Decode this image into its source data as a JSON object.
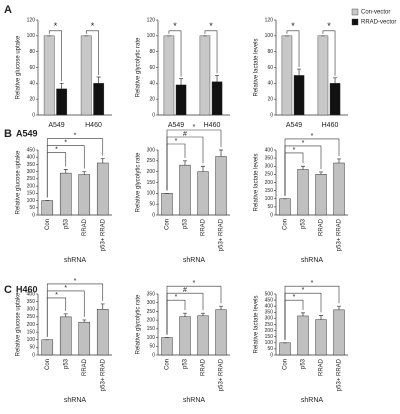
{
  "panels": [
    {
      "label": "A"
    },
    {
      "label": "B",
      "title": "A549"
    },
    {
      "label": "C",
      "title": "H460"
    }
  ],
  "chart_data": [
    {
      "type": "grouped_bar",
      "ylabel": "Relative glucose uptake",
      "categories": [
        "A549",
        "H460"
      ],
      "series": [
        {
          "name": "Con-vector",
          "color": "#c8c8c8",
          "values": [
            100,
            100
          ],
          "errors": [
            0,
            0
          ]
        },
        {
          "name": "RRAD-vector",
          "color": "#111111",
          "values": [
            33,
            40
          ],
          "errors": [
            7,
            8
          ]
        }
      ],
      "significance": [
        "*",
        "*"
      ],
      "ylim": [
        0,
        120
      ],
      "yticks": [
        0,
        20,
        40,
        60,
        80,
        100,
        120
      ],
      "legend": true
    },
    {
      "type": "grouped_bar",
      "ylabel": "Relative glycolytic rate",
      "categories": [
        "A549",
        "H460"
      ],
      "series": [
        {
          "name": "Con-vector",
          "color": "#c8c8c8",
          "values": [
            100,
            100
          ],
          "errors": [
            0,
            0
          ]
        },
        {
          "name": "RRAD-vector",
          "color": "#111111",
          "values": [
            38,
            42
          ],
          "errors": [
            8,
            8
          ]
        }
      ],
      "significance": [
        "*",
        "*"
      ],
      "ylim": [
        0,
        120
      ],
      "yticks": [
        0,
        20,
        40,
        60,
        80,
        100,
        120
      ],
      "legend": false
    },
    {
      "type": "grouped_bar",
      "ylabel": "Relative lactate levels",
      "categories": [
        "A549",
        "H460"
      ],
      "series": [
        {
          "name": "Con-vector",
          "color": "#c8c8c8",
          "values": [
            100,
            100
          ],
          "errors": [
            0,
            0
          ]
        },
        {
          "name": "RRAD-vector",
          "color": "#111111",
          "values": [
            50,
            40
          ],
          "errors": [
            8,
            7
          ]
        }
      ],
      "significance": [
        "*",
        "*"
      ],
      "ylim": [
        0,
        120
      ],
      "yticks": [
        0,
        20,
        40,
        60,
        80,
        100,
        120
      ],
      "legend": false
    },
    {
      "type": "bar",
      "ylabel": "Relative glucose uptake",
      "xlabel": "shRNA",
      "color": "#c0c0c0",
      "categories": [
        "Con",
        "p53",
        "RRAD",
        "p53+ RRAD"
      ],
      "values": [
        100,
        290,
        280,
        360
      ],
      "errors": [
        0,
        25,
        20,
        30
      ],
      "comparisons": [
        {
          "label": "*",
          "groups": [
            "Con",
            "p53"
          ]
        },
        {
          "label": "*",
          "groups": [
            "Con",
            "RRAD"
          ]
        },
        {
          "label": "*",
          "groups": [
            "Con",
            "p53+ RRAD"
          ]
        }
      ],
      "ylim": [
        0,
        450
      ],
      "yticks": [
        0,
        50,
        100,
        150,
        200,
        250,
        300,
        350,
        400,
        450
      ]
    },
    {
      "type": "bar",
      "ylabel": "Relative glycolytic rate",
      "xlabel": "shRNA",
      "color": "#c0c0c0",
      "categories": [
        "Con",
        "p53",
        "RRAD",
        "p53+ RRAD"
      ],
      "values": [
        100,
        230,
        200,
        270
      ],
      "errors": [
        0,
        20,
        25,
        30
      ],
      "comparisons": [
        {
          "label": "*",
          "groups": [
            "Con",
            "p53"
          ]
        },
        {
          "label": "#",
          "groups": [
            "Con",
            "RRAD"
          ]
        },
        {
          "label": "*",
          "groups": [
            "Con",
            "p53+ RRAD"
          ]
        }
      ],
      "ylim": [
        0,
        300
      ],
      "yticks": [
        0,
        50,
        100,
        150,
        200,
        250,
        300
      ]
    },
    {
      "type": "bar",
      "ylabel": "Relative lactate levels",
      "xlabel": "shRNA",
      "color": "#c0c0c0",
      "categories": [
        "Con",
        "p53",
        "RRAD",
        "p53+ RRAD"
      ],
      "values": [
        100,
        280,
        250,
        320
      ],
      "errors": [
        0,
        20,
        15,
        25
      ],
      "comparisons": [
        {
          "label": "*",
          "groups": [
            "Con",
            "p53"
          ]
        },
        {
          "label": "*",
          "groups": [
            "Con",
            "RRAD"
          ]
        },
        {
          "label": "*",
          "groups": [
            "Con",
            "p53+ RRAD"
          ]
        }
      ],
      "ylim": [
        0,
        400
      ],
      "yticks": [
        0,
        50,
        100,
        150,
        200,
        250,
        300,
        350,
        400
      ]
    },
    {
      "type": "bar",
      "ylabel": "Relative glucose uptake",
      "xlabel": "shRNA",
      "color": "#c0c0c0",
      "categories": [
        "Con",
        "p53",
        "RRAD",
        "p53+ RRAD"
      ],
      "values": [
        100,
        250,
        215,
        300
      ],
      "errors": [
        0,
        20,
        15,
        35
      ],
      "comparisons": [
        {
          "label": "*",
          "groups": [
            "Con",
            "p53"
          ]
        },
        {
          "label": "*",
          "groups": [
            "Con",
            "RRAD"
          ]
        },
        {
          "label": "*",
          "groups": [
            "Con",
            "p53+ RRAD"
          ]
        }
      ],
      "ylim": [
        0,
        400
      ],
      "yticks": [
        0,
        50,
        100,
        150,
        200,
        250,
        300,
        350,
        400
      ]
    },
    {
      "type": "bar",
      "ylabel": "Relative glycolytic rate",
      "xlabel": "shRNA",
      "color": "#c0c0c0",
      "categories": [
        "Con",
        "p53",
        "RRAD",
        "p53+ RRAD"
      ],
      "values": [
        100,
        220,
        225,
        260
      ],
      "errors": [
        0,
        20,
        15,
        20
      ],
      "comparisons": [
        {
          "label": "*",
          "groups": [
            "Con",
            "p53"
          ]
        },
        {
          "label": "#",
          "groups": [
            "Con",
            "RRAD"
          ]
        },
        {
          "label": "*",
          "groups": [
            "Con",
            "p53+ RRAD"
          ]
        }
      ],
      "ylim": [
        0,
        350
      ],
      "yticks": [
        0,
        50,
        100,
        150,
        200,
        250,
        300,
        350
      ]
    },
    {
      "type": "bar",
      "ylabel": "Relative lactate levels",
      "xlabel": "shRNA",
      "color": "#c0c0c0",
      "categories": [
        "Con",
        "p53",
        "RRAD",
        "p53+ RRAD"
      ],
      "values": [
        100,
        320,
        290,
        370
      ],
      "errors": [
        0,
        25,
        35,
        30
      ],
      "comparisons": [
        {
          "label": "*",
          "groups": [
            "Con",
            "p53"
          ]
        },
        {
          "label": "*",
          "groups": [
            "Con",
            "RRAD"
          ]
        },
        {
          "label": "*",
          "groups": [
            "Con",
            "p53+ RRAD"
          ]
        }
      ],
      "ylim": [
        0,
        500
      ],
      "yticks": [
        0,
        50,
        100,
        150,
        200,
        250,
        300,
        350,
        400,
        450,
        500
      ]
    }
  ]
}
